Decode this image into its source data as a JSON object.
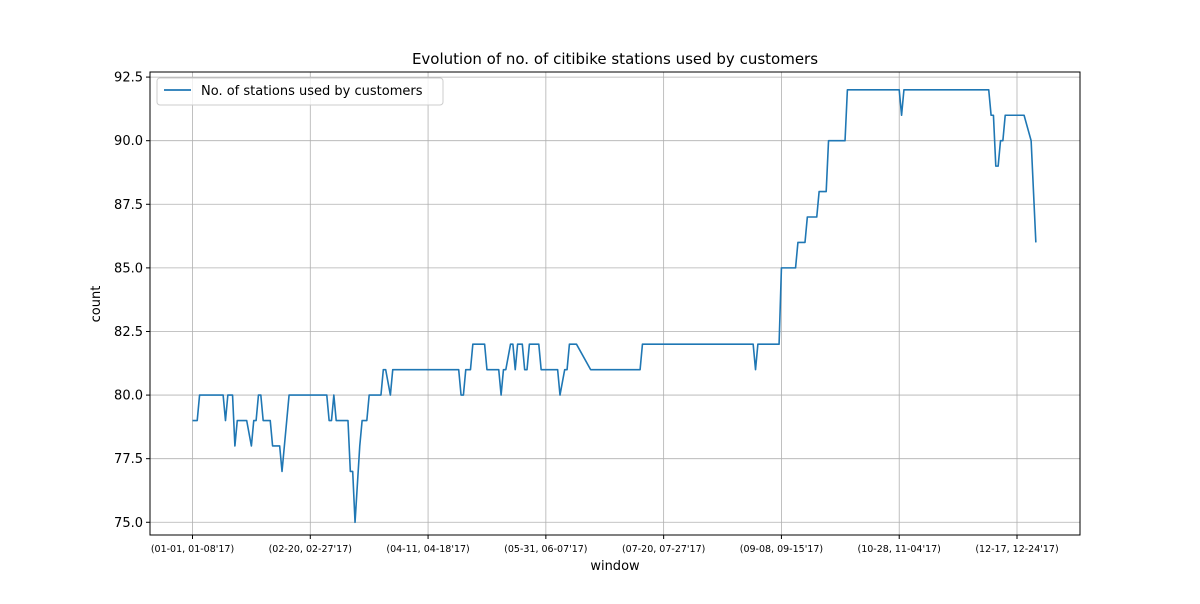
{
  "chart_data": {
    "type": "line",
    "title": "Evolution of no. of citibike stations used by customers",
    "xlabel": "window",
    "ylabel": "count",
    "ylim": [
      74.5,
      92.7
    ],
    "y_ticks": [
      "75.0",
      "77.5",
      "80.0",
      "82.5",
      "85.0",
      "87.5",
      "90.0",
      "92.5"
    ],
    "x_ticks": [
      {
        "label": "(01-01, 01-08'17)",
        "index": 0
      },
      {
        "label": "(02-20, 02-27'17)",
        "index": 50
      },
      {
        "label": "(04-11, 04-18'17)",
        "index": 100
      },
      {
        "label": "(05-31, 06-07'17)",
        "index": 150
      },
      {
        "label": "(07-20, 07-27'17)",
        "index": 200
      },
      {
        "label": "(09-08, 09-15'17)",
        "index": 250
      },
      {
        "label": "(10-28, 11-04'17)",
        "index": 300
      },
      {
        "label": "(12-17, 12-24'17)",
        "index": 350
      }
    ],
    "grid": true,
    "legend_position": "upper-left",
    "series": [
      {
        "name": "No. of stations used by customers",
        "color": "#1f77b4",
        "x": [
          0,
          2,
          3,
          13,
          14,
          15,
          17,
          18,
          19,
          21,
          22,
          23,
          25,
          26,
          27,
          28,
          29,
          30,
          31,
          33,
          34,
          37,
          38,
          39,
          40,
          41,
          42,
          43,
          57,
          58,
          59,
          60,
          61,
          66,
          67,
          68,
          69,
          71,
          72,
          74,
          75,
          77,
          80,
          81,
          82,
          84,
          85,
          113,
          114,
          115,
          116,
          118,
          119,
          124,
          125,
          130,
          131,
          132,
          133,
          135,
          136,
          137,
          138,
          140,
          141,
          142,
          143,
          145,
          146,
          147,
          148,
          155,
          156,
          158,
          159,
          160,
          163,
          169,
          170,
          190,
          191,
          238,
          239,
          240,
          241,
          244,
          249,
          250,
          251,
          256,
          257,
          260,
          261,
          265,
          266,
          269,
          270,
          277,
          278,
          300,
          301,
          302,
          338,
          339,
          340,
          341,
          342,
          343,
          344,
          345,
          349,
          353,
          356,
          357,
          358
        ],
        "y": [
          79,
          79,
          80,
          80,
          79,
          80,
          80,
          78,
          79,
          79,
          79,
          79,
          78,
          79,
          79,
          80,
          80,
          79,
          79,
          79,
          78,
          78,
          77,
          78,
          79,
          80,
          80,
          80,
          80,
          79,
          79,
          80,
          79,
          79,
          77,
          77,
          75,
          78,
          79,
          79,
          80,
          80,
          80,
          81,
          81,
          80,
          81,
          81,
          80,
          80,
          81,
          81,
          82,
          82,
          81,
          81,
          80,
          81,
          81,
          82,
          82,
          81,
          82,
          82,
          81,
          81,
          82,
          82,
          82,
          82,
          81,
          81,
          80,
          81,
          81,
          82,
          82,
          81,
          81,
          81,
          82,
          82,
          81,
          82,
          82,
          82,
          82,
          85,
          85,
          85,
          86,
          86,
          87,
          87,
          88,
          88,
          90,
          90,
          92,
          92,
          91,
          92,
          92,
          91,
          91,
          89,
          89,
          90,
          90,
          91,
          91,
          91,
          90,
          88,
          86
        ]
      }
    ]
  }
}
